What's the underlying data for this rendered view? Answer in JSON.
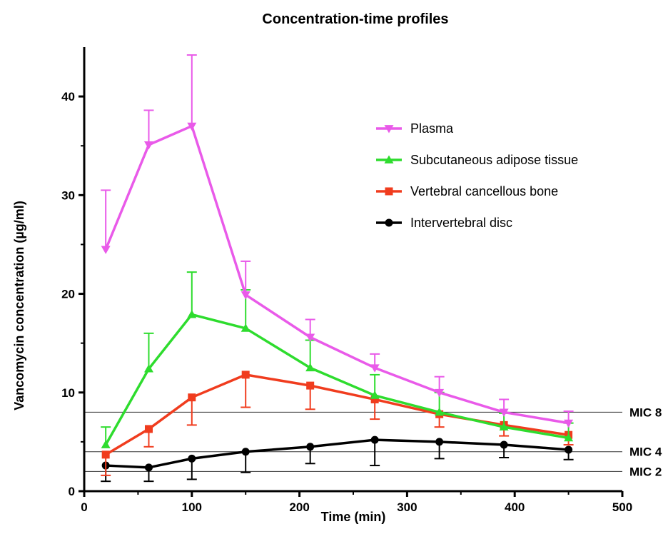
{
  "chart_data": {
    "type": "line",
    "title": "Concentration-time profiles",
    "xlabel": "Time (min)",
    "ylabel": "Vancomycin concentration  (µg/ml)",
    "xlim": [
      0,
      500
    ],
    "ylim": [
      0,
      45
    ],
    "xticks": [
      0,
      100,
      200,
      300,
      400,
      500
    ],
    "yticks": [
      0,
      10,
      20,
      30,
      40
    ],
    "grid": false,
    "legend_position": "top-right",
    "x": [
      20,
      60,
      100,
      150,
      210,
      270,
      330,
      390,
      450
    ],
    "series": [
      {
        "name": "Plasma",
        "color": "#e95ae9",
        "marker": "triangle-down",
        "values": [
          24.5,
          35.1,
          37.0,
          19.9,
          15.6,
          12.5,
          10.0,
          8.0,
          6.9
        ],
        "error_plus": [
          6.0,
          3.5,
          7.2,
          3.4,
          1.8,
          1.4,
          1.6,
          1.3,
          1.2
        ],
        "error_minus": [
          0,
          0,
          0,
          0,
          0,
          0,
          0,
          0,
          0
        ]
      },
      {
        "name": "Subcutaneous adipose tissue",
        "color": "#2edc2e",
        "marker": "triangle-up",
        "values": [
          4.7,
          12.4,
          17.9,
          16.5,
          12.5,
          9.7,
          8.0,
          6.5,
          5.4
        ],
        "error_plus": [
          1.8,
          3.6,
          4.3,
          3.9,
          2.8,
          2.1,
          2.0,
          1.4,
          1.5
        ],
        "error_minus": [
          0,
          0,
          0,
          0,
          0,
          0,
          0,
          0,
          0
        ]
      },
      {
        "name": "Vertebral cancellous bone",
        "color": "#f03c1e",
        "marker": "square",
        "values": [
          3.7,
          6.3,
          9.5,
          11.8,
          10.7,
          9.3,
          7.8,
          6.7,
          5.7
        ],
        "error_plus": [
          0,
          0,
          0,
          0,
          0,
          0,
          0,
          0,
          0
        ],
        "error_minus": [
          2.1,
          1.8,
          2.8,
          3.3,
          2.4,
          2.0,
          1.3,
          1.1,
          1.0
        ]
      },
      {
        "name": "Intervertebral disc",
        "color": "#000000",
        "marker": "circle",
        "values": [
          2.6,
          2.4,
          3.3,
          4.0,
          4.5,
          5.2,
          5.0,
          4.7,
          4.2
        ],
        "error_plus": [
          0,
          0,
          0,
          0,
          0,
          0,
          0,
          0,
          0
        ],
        "error_minus": [
          1.6,
          1.4,
          2.1,
          2.1,
          1.7,
          2.6,
          1.7,
          1.3,
          1.0
        ]
      }
    ],
    "reference_lines": [
      {
        "y": 8,
        "label": "MIC 8"
      },
      {
        "y": 4,
        "label": "MIC 4"
      },
      {
        "y": 2,
        "label": "MIC 2"
      }
    ]
  }
}
